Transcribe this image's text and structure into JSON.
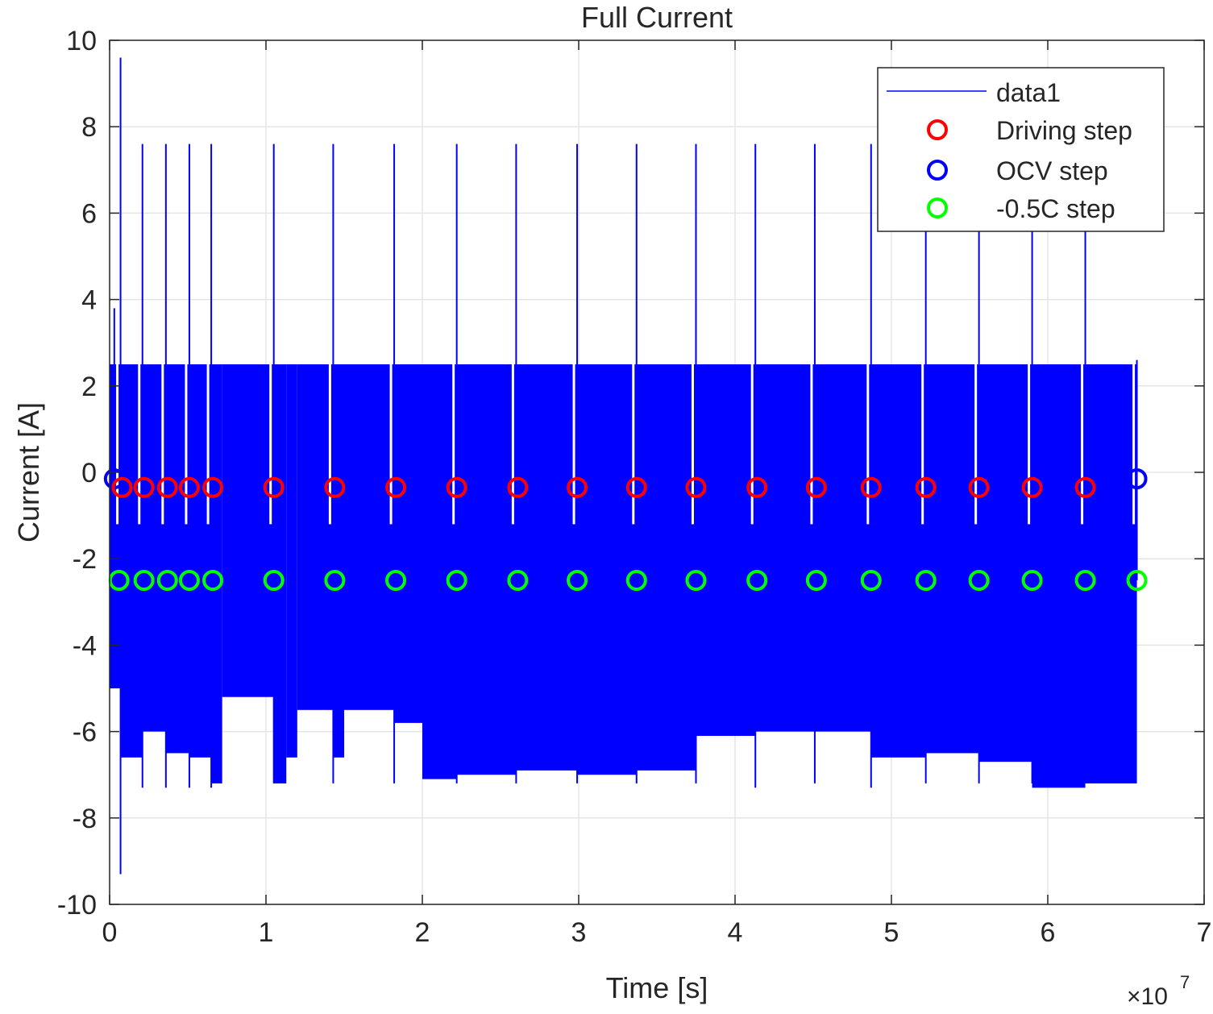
{
  "chart_data": {
    "type": "line",
    "title": "Full Current",
    "xlabel": "Time [s]",
    "ylabel": "Current [A]",
    "x_exponent_label": "×10",
    "x_exponent_power": "7",
    "xlim": [
      0,
      7
    ],
    "ylim": [
      -10,
      10
    ],
    "x_ticks": [
      0,
      1,
      2,
      3,
      4,
      5,
      6,
      7
    ],
    "y_ticks": [
      -10,
      -8,
      -6,
      -4,
      -2,
      0,
      2,
      4,
      6,
      8,
      10
    ],
    "x_tick_labels": [
      "0",
      "1",
      "2",
      "3",
      "4",
      "5",
      "6",
      "7"
    ],
    "y_tick_labels": [
      "-10",
      "-8",
      "-6",
      "-4",
      "-2",
      "0",
      "2",
      "4",
      "6",
      "8",
      "10"
    ],
    "grid": true,
    "legend_position": "top-right",
    "colors": {
      "data1": "#0000ff",
      "driving": "#ff0000",
      "ocv": "#0000ff",
      "neg05c": "#00ff00",
      "axis": "#262626",
      "grid": "#e5e5e5"
    },
    "series": [
      {
        "name": "data1",
        "style": "line",
        "x_range": [
          0,
          6.57
        ],
        "band_upper": 2.5,
        "segments": [
          {
            "x": [
              0.0,
              0.07
            ],
            "lower": -5.0
          },
          {
            "x": [
              0.07,
              0.21
            ],
            "lower": -6.6
          },
          {
            "x": [
              0.21,
              0.36
            ],
            "lower": -6.0
          },
          {
            "x": [
              0.36,
              0.51
            ],
            "lower": -6.5
          },
          {
            "x": [
              0.51,
              0.65
            ],
            "lower": -6.6
          },
          {
            "x": [
              0.65,
              0.72
            ],
            "lower": -7.2
          },
          {
            "x": [
              0.72,
              1.05
            ],
            "lower": -5.2
          },
          {
            "x": [
              1.05,
              1.13
            ],
            "lower": -7.2
          },
          {
            "x": [
              1.13,
              1.2
            ],
            "lower": -6.6
          },
          {
            "x": [
              1.2,
              1.43
            ],
            "lower": -5.5
          },
          {
            "x": [
              1.43,
              1.5
            ],
            "lower": -6.6
          },
          {
            "x": [
              1.5,
              1.82
            ],
            "lower": -5.5
          },
          {
            "x": [
              1.82,
              2.0
            ],
            "lower": -5.8
          },
          {
            "x": [
              2.0,
              2.22
            ],
            "lower": -7.1
          },
          {
            "x": [
              2.22,
              2.6
            ],
            "lower": -7.0
          },
          {
            "x": [
              2.6,
              2.99
            ],
            "lower": -6.9
          },
          {
            "x": [
              2.99,
              3.37
            ],
            "lower": -7.0
          },
          {
            "x": [
              3.37,
              3.75
            ],
            "lower": -6.9
          },
          {
            "x": [
              3.75,
              4.13
            ],
            "lower": -6.1
          },
          {
            "x": [
              4.13,
              4.51
            ],
            "lower": -6.0
          },
          {
            "x": [
              4.51,
              4.87
            ],
            "lower": -6.0
          },
          {
            "x": [
              4.87,
              5.22
            ],
            "lower": -6.6
          },
          {
            "x": [
              5.22,
              5.56
            ],
            "lower": -6.5
          },
          {
            "x": [
              5.56,
              5.9
            ],
            "lower": -6.7
          },
          {
            "x": [
              5.9,
              6.24
            ],
            "lower": -7.3
          },
          {
            "x": [
              6.24,
              6.57
            ],
            "lower": -7.2
          }
        ],
        "spikes": [
          {
            "x": 0.03,
            "high": 3.8,
            "low": -5.0
          },
          {
            "x": 0.07,
            "high": 9.6,
            "low": -9.3
          },
          {
            "x": 0.21,
            "high": 7.6,
            "low": -7.3
          },
          {
            "x": 0.36,
            "high": 7.6,
            "low": -7.3
          },
          {
            "x": 0.51,
            "high": 7.6,
            "low": -7.3
          },
          {
            "x": 0.65,
            "high": 7.6,
            "low": -7.3
          },
          {
            "x": 1.05,
            "high": 7.6,
            "low": -7.2
          },
          {
            "x": 1.43,
            "high": 7.6,
            "low": -7.2
          },
          {
            "x": 1.82,
            "high": 7.6,
            "low": -7.2
          },
          {
            "x": 2.22,
            "high": 7.6,
            "low": -7.2
          },
          {
            "x": 2.6,
            "high": 7.6,
            "low": -7.2
          },
          {
            "x": 2.99,
            "high": 7.6,
            "low": -7.2
          },
          {
            "x": 3.37,
            "high": 7.6,
            "low": -7.2
          },
          {
            "x": 3.75,
            "high": 7.6,
            "low": -7.2
          },
          {
            "x": 4.13,
            "high": 7.6,
            "low": -7.3
          },
          {
            "x": 4.51,
            "high": 7.6,
            "low": -7.2
          },
          {
            "x": 4.87,
            "high": 7.6,
            "low": -7.3
          },
          {
            "x": 5.22,
            "high": 6.0,
            "low": -7.2
          },
          {
            "x": 5.56,
            "high": 5.8,
            "low": -7.2
          },
          {
            "x": 5.9,
            "high": 6.0,
            "low": -7.2
          },
          {
            "x": 6.24,
            "high": 6.0,
            "low": -7.2
          },
          {
            "x": 6.57,
            "high": 2.6,
            "low": -2.5
          }
        ]
      },
      {
        "name": "Driving step",
        "style": "circle",
        "x": [
          0.08,
          0.22,
          0.37,
          0.51,
          0.66,
          1.05,
          1.44,
          1.83,
          2.22,
          2.61,
          2.99,
          3.37,
          3.75,
          4.14,
          4.52,
          4.87,
          5.22,
          5.56,
          5.9,
          6.24
        ],
        "y": [
          -0.35,
          -0.35,
          -0.35,
          -0.35,
          -0.35,
          -0.35,
          -0.35,
          -0.35,
          -0.35,
          -0.35,
          -0.35,
          -0.35,
          -0.35,
          -0.35,
          -0.35,
          -0.35,
          -0.35,
          -0.35,
          -0.35,
          -0.35
        ]
      },
      {
        "name": "OCV step",
        "style": "circle",
        "x": [
          0.03,
          6.57
        ],
        "y": [
          -0.15,
          -0.15
        ]
      },
      {
        "name": "-0.5C step",
        "style": "circle",
        "x": [
          0.06,
          0.22,
          0.37,
          0.51,
          0.66,
          1.05,
          1.44,
          1.83,
          2.22,
          2.61,
          2.99,
          3.37,
          3.75,
          4.14,
          4.52,
          4.87,
          5.22,
          5.56,
          5.9,
          6.24,
          6.57
        ],
        "y": [
          -2.5,
          -2.5,
          -2.5,
          -2.5,
          -2.5,
          -2.5,
          -2.5,
          -2.5,
          -2.5,
          -2.5,
          -2.5,
          -2.5,
          -2.5,
          -2.5,
          -2.5,
          -2.5,
          -2.5,
          -2.5,
          -2.5,
          -2.5,
          -2.5
        ]
      }
    ]
  }
}
